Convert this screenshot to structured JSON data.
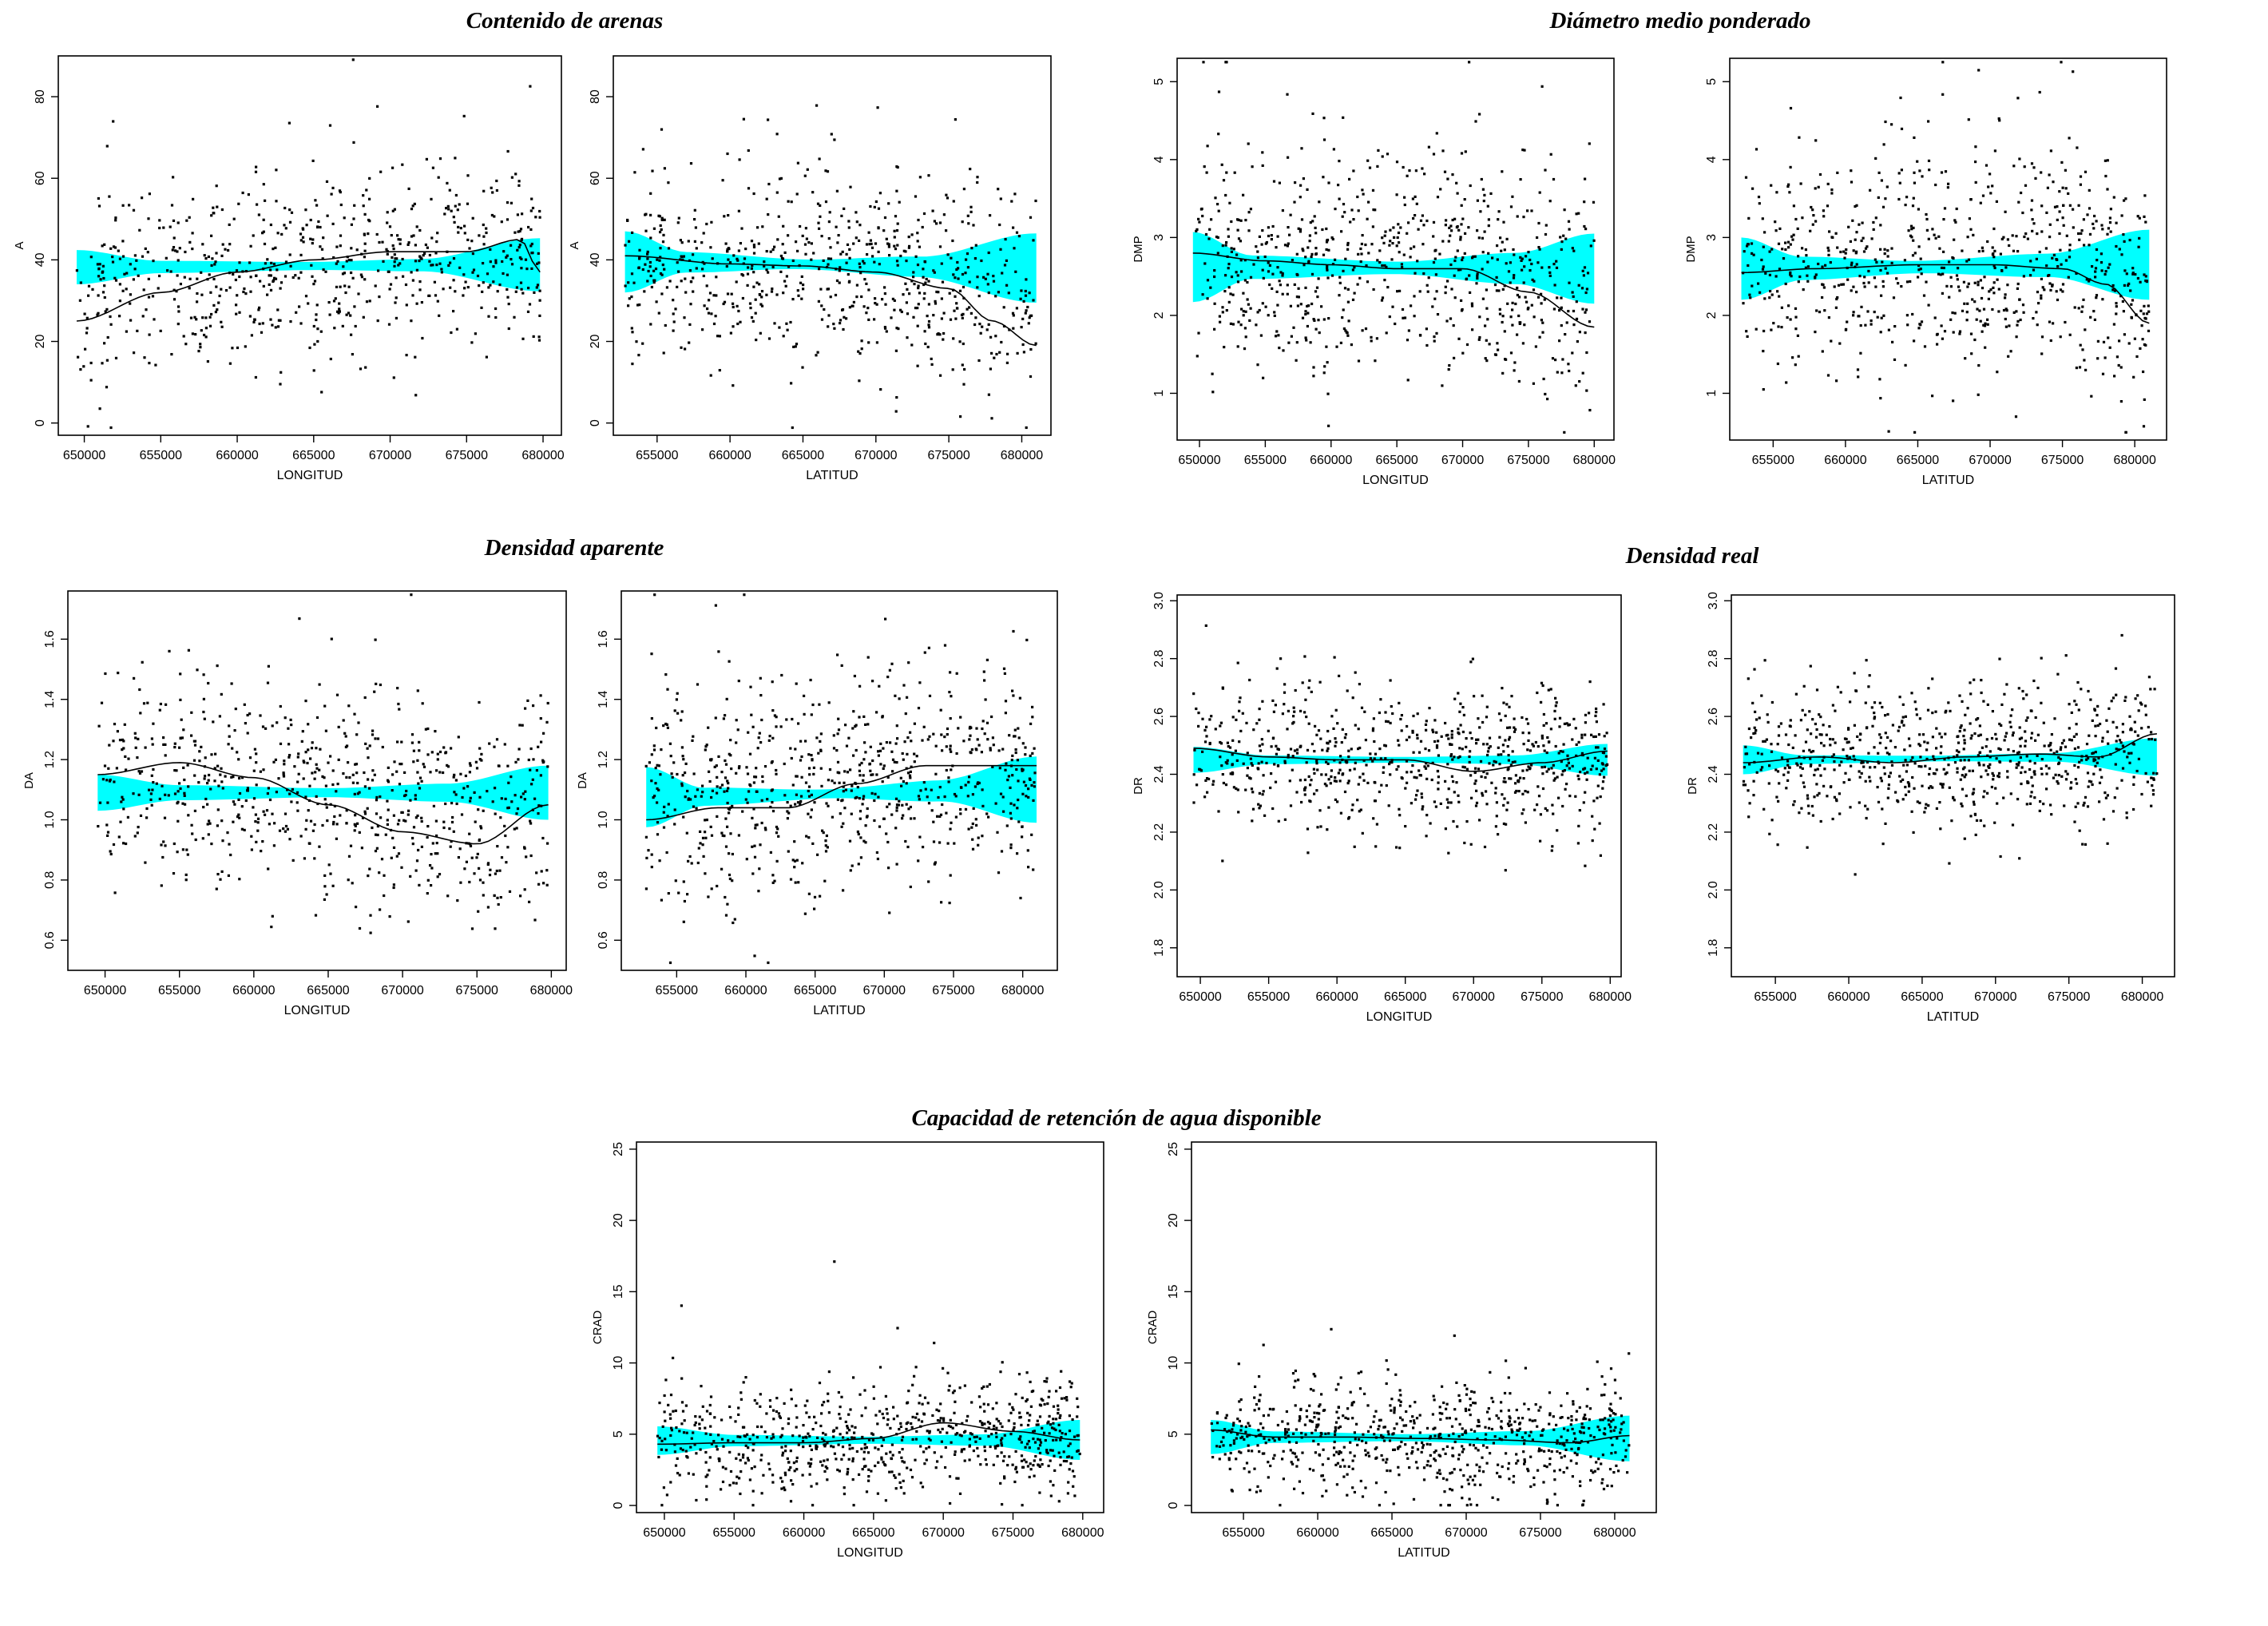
{
  "colors": {
    "band": "#00ffff",
    "points": "#000000",
    "curve": "#000000",
    "frame": "#000000"
  },
  "groups": [
    {
      "title": "Contenido de arenas"
    },
    {
      "title": "Diámetro medio ponderado"
    },
    {
      "title": "Densidad aparente"
    },
    {
      "title": "Densidad real"
    },
    {
      "title": "Capacidad de retención de agua disponible"
    }
  ],
  "chart_data": [
    {
      "type": "scatter",
      "group": 0,
      "xlabel": "LONGITUD",
      "ylabel": "A",
      "xlim": [
        648300,
        681200
      ],
      "ylim": [
        -3,
        90
      ],
      "xticks": [
        650000,
        655000,
        660000,
        665000,
        670000,
        675000,
        680000
      ],
      "yticks": [
        0,
        20,
        40,
        60,
        80
      ],
      "x_range": [
        649500,
        679800
      ],
      "center": 38.5,
      "cloud_sd": 13.5,
      "n_points": 700,
      "seed": 11,
      "smooth": [
        [
          649500,
          25
        ],
        [
          655000,
          32
        ],
        [
          660000,
          37
        ],
        [
          665000,
          40
        ],
        [
          670000,
          42
        ],
        [
          675000,
          42
        ],
        [
          678500,
          45
        ],
        [
          679800,
          37
        ]
      ],
      "band_mean": [
        [
          649500,
          38.2
        ],
        [
          679800,
          38.8
        ]
      ],
      "band_half": [
        [
          649500,
          4.2
        ],
        [
          655000,
          1.5
        ],
        [
          665000,
          1
        ],
        [
          672000,
          1.5
        ],
        [
          679800,
          6.5
        ]
      ]
    },
    {
      "type": "scatter",
      "group": 0,
      "xlabel": "LATITUD",
      "ylabel": "A",
      "xlim": [
        652000,
        682000
      ],
      "ylim": [
        -3,
        90
      ],
      "xticks": [
        655000,
        660000,
        665000,
        670000,
        675000,
        680000
      ],
      "yticks": [
        0,
        20,
        40,
        60,
        80
      ],
      "x_range": [
        652800,
        681000
      ],
      "center": 38,
      "cloud_sd": 13.5,
      "n_points": 700,
      "seed": 23,
      "smooth": [
        [
          652800,
          41
        ],
        [
          660000,
          39
        ],
        [
          665000,
          38.5
        ],
        [
          670000,
          37
        ],
        [
          675000,
          33
        ],
        [
          678000,
          25
        ],
        [
          681000,
          19
        ]
      ],
      "band_mean": [
        [
          652800,
          39.5
        ],
        [
          681000,
          38
        ]
      ],
      "band_half": [
        [
          652800,
          7.5
        ],
        [
          657000,
          2.5
        ],
        [
          665000,
          1.2
        ],
        [
          673000,
          2.5
        ],
        [
          681000,
          8.5
        ]
      ]
    },
    {
      "type": "scatter",
      "group": 1,
      "xlabel": "LONGITUD",
      "ylabel": "DMP",
      "xlim": [
        648300,
        681500
      ],
      "ylim": [
        0.4,
        5.3
      ],
      "xticks": [
        650000,
        655000,
        660000,
        665000,
        670000,
        675000,
        680000
      ],
      "yticks": [
        1,
        2,
        3,
        4,
        5
      ],
      "x_range": [
        649500,
        680000
      ],
      "center": 2.6,
      "cloud_sd": 0.85,
      "n_points": 750,
      "seed": 37,
      "smooth": [
        [
          649500,
          2.8
        ],
        [
          655000,
          2.7
        ],
        [
          660000,
          2.65
        ],
        [
          665000,
          2.6
        ],
        [
          670000,
          2.6
        ],
        [
          675000,
          2.3
        ],
        [
          680000,
          1.85
        ]
      ],
      "band_mean": [
        [
          649500,
          2.62
        ],
        [
          680000,
          2.6
        ]
      ],
      "band_half": [
        [
          649500,
          0.45
        ],
        [
          654000,
          0.15
        ],
        [
          665000,
          0.08
        ],
        [
          674000,
          0.2
        ],
        [
          680000,
          0.45
        ]
      ]
    },
    {
      "type": "scatter",
      "group": 1,
      "xlabel": "LATITUD",
      "ylabel": "DMP",
      "xlim": [
        652000,
        682200
      ],
      "ylim": [
        0.4,
        5.3
      ],
      "xticks": [
        655000,
        660000,
        665000,
        670000,
        675000,
        680000
      ],
      "yticks": [
        1,
        2,
        3,
        4,
        5
      ],
      "x_range": [
        652800,
        681000
      ],
      "center": 2.6,
      "cloud_sd": 0.85,
      "n_points": 750,
      "seed": 41,
      "smooth": [
        [
          652800,
          2.55
        ],
        [
          658000,
          2.6
        ],
        [
          665000,
          2.65
        ],
        [
          670000,
          2.65
        ],
        [
          675000,
          2.6
        ],
        [
          678000,
          2.4
        ],
        [
          681000,
          1.9
        ]
      ],
      "band_mean": [
        [
          652800,
          2.6
        ],
        [
          681000,
          2.65
        ]
      ],
      "band_half": [
        [
          652800,
          0.4
        ],
        [
          657000,
          0.15
        ],
        [
          665000,
          0.08
        ],
        [
          674000,
          0.15
        ],
        [
          681000,
          0.45
        ]
      ]
    },
    {
      "type": "scatter",
      "group": 2,
      "xlabel": "LONGITUD",
      "ylabel": "DA",
      "xlim": [
        647500,
        681000
      ],
      "ylim": [
        0.5,
        1.76
      ],
      "xticks": [
        650000,
        655000,
        660000,
        665000,
        670000,
        675000,
        680000
      ],
      "yticks": [
        0.6,
        0.8,
        1.0,
        1.2,
        1.4,
        1.6
      ],
      "x_range": [
        649500,
        679800
      ],
      "center": 1.09,
      "cloud_sd": 0.2,
      "n_points": 750,
      "seed": 53,
      "smooth": [
        [
          649500,
          1.15
        ],
        [
          655000,
          1.19
        ],
        [
          660000,
          1.14
        ],
        [
          665000,
          1.05
        ],
        [
          670000,
          0.96
        ],
        [
          675000,
          0.92
        ],
        [
          679800,
          1.05
        ]
      ],
      "band_mean": [
        [
          649500,
          1.09
        ],
        [
          679800,
          1.09
        ]
      ],
      "band_half": [
        [
          649500,
          0.06
        ],
        [
          655000,
          0.025
        ],
        [
          665000,
          0.015
        ],
        [
          673000,
          0.03
        ],
        [
          679800,
          0.09
        ]
      ]
    },
    {
      "type": "scatter",
      "group": 2,
      "xlabel": "LATITUD",
      "ylabel": "DA",
      "xlim": [
        651000,
        682500
      ],
      "ylim": [
        0.5,
        1.76
      ],
      "xticks": [
        655000,
        660000,
        665000,
        670000,
        675000,
        680000
      ],
      "yticks": [
        0.6,
        0.8,
        1.0,
        1.2,
        1.4,
        1.6
      ],
      "x_range": [
        652800,
        681000
      ],
      "center": 1.09,
      "cloud_sd": 0.2,
      "n_points": 750,
      "seed": 67,
      "smooth": [
        [
          652800,
          1.0
        ],
        [
          658000,
          1.04
        ],
        [
          663000,
          1.04
        ],
        [
          668000,
          1.12
        ],
        [
          673000,
          1.18
        ],
        [
          681000,
          1.18
        ]
      ],
      "band_mean": [
        [
          652800,
          1.075
        ],
        [
          681000,
          1.1
        ]
      ],
      "band_half": [
        [
          652800,
          0.1
        ],
        [
          657000,
          0.03
        ],
        [
          666000,
          0.015
        ],
        [
          674000,
          0.035
        ],
        [
          681000,
          0.11
        ]
      ]
    },
    {
      "type": "scatter",
      "group": 3,
      "xlabel": "LONGITUD",
      "ylabel": "DR",
      "xlim": [
        648300,
        680800
      ],
      "ylim": [
        1.7,
        3.02
      ],
      "xticks": [
        650000,
        655000,
        660000,
        665000,
        670000,
        675000,
        680000
      ],
      "yticks": [
        1.8,
        2.0,
        2.2,
        2.4,
        2.6,
        2.8,
        3.0
      ],
      "x_range": [
        649500,
        679800
      ],
      "center": 2.45,
      "cloud_sd": 0.14,
      "n_points": 750,
      "seed": 71,
      "smooth": [
        [
          649500,
          2.49
        ],
        [
          655000,
          2.46
        ],
        [
          660000,
          2.45
        ],
        [
          665000,
          2.45
        ],
        [
          670000,
          2.41
        ],
        [
          675000,
          2.44
        ],
        [
          679800,
          2.48
        ]
      ],
      "band_mean": [
        [
          649500,
          2.45
        ],
        [
          679800,
          2.45
        ]
      ],
      "band_half": [
        [
          649500,
          0.045
        ],
        [
          655000,
          0.015
        ],
        [
          665000,
          0.01
        ],
        [
          673000,
          0.015
        ],
        [
          679800,
          0.055
        ]
      ]
    },
    {
      "type": "scatter",
      "group": 3,
      "xlabel": "LATITUD",
      "ylabel": "DR",
      "xlim": [
        652000,
        682200
      ],
      "ylim": [
        1.7,
        3.02
      ],
      "xticks": [
        655000,
        660000,
        665000,
        670000,
        675000,
        680000
      ],
      "yticks": [
        1.8,
        2.0,
        2.2,
        2.4,
        2.6,
        2.8,
        3.0
      ],
      "x_range": [
        652800,
        681000
      ],
      "center": 2.45,
      "cloud_sd": 0.14,
      "n_points": 750,
      "seed": 83,
      "smooth": [
        [
          652800,
          2.44
        ],
        [
          658000,
          2.46
        ],
        [
          663000,
          2.44
        ],
        [
          668000,
          2.46
        ],
        [
          673000,
          2.47
        ],
        [
          677000,
          2.46
        ],
        [
          681000,
          2.54
        ]
      ],
      "band_mean": [
        [
          652800,
          2.45
        ],
        [
          681000,
          2.46
        ]
      ],
      "band_half": [
        [
          652800,
          0.05
        ],
        [
          657000,
          0.015
        ],
        [
          666000,
          0.01
        ],
        [
          674000,
          0.015
        ],
        [
          681000,
          0.065
        ]
      ]
    },
    {
      "type": "scatter",
      "group": 4,
      "xlabel": "LONGITUD",
      "ylabel": "CRAD",
      "xlim": [
        648000,
        681500
      ],
      "ylim": [
        -0.5,
        25.5
      ],
      "xticks": [
        650000,
        655000,
        660000,
        665000,
        670000,
        675000,
        680000
      ],
      "yticks": [
        0,
        5,
        10,
        15,
        20,
        25
      ],
      "x_range": [
        649500,
        679800
      ],
      "center": 4.4,
      "cloud_sd": 2.4,
      "n_points": 750,
      "seed": 97,
      "smooth": [
        [
          649500,
          4.3
        ],
        [
          655000,
          4.4
        ],
        [
          660000,
          4.4
        ],
        [
          665000,
          4.7
        ],
        [
          670000,
          5.8
        ],
        [
          675000,
          5.2
        ],
        [
          679800,
          4.6
        ]
      ],
      "band_mean": [
        [
          649500,
          4.55
        ],
        [
          679800,
          4.6
        ]
      ],
      "band_half": [
        [
          649500,
          1.0
        ],
        [
          655000,
          0.4
        ],
        [
          665000,
          0.25
        ],
        [
          673000,
          0.4
        ],
        [
          679800,
          1.4
        ]
      ]
    },
    {
      "type": "scatter",
      "group": 4,
      "xlabel": "LATITUD",
      "ylabel": "CRAD",
      "xlim": [
        651500,
        682800
      ],
      "ylim": [
        -0.5,
        25.5
      ],
      "xticks": [
        655000,
        660000,
        665000,
        670000,
        675000,
        680000
      ],
      "yticks": [
        0,
        5,
        10,
        15,
        20,
        25
      ],
      "x_range": [
        652800,
        681000
      ],
      "center": 4.5,
      "cloud_sd": 2.4,
      "n_points": 750,
      "seed": 103,
      "smooth": [
        [
          652800,
          5.3
        ],
        [
          657000,
          4.8
        ],
        [
          662000,
          4.8
        ],
        [
          667000,
          4.7
        ],
        [
          672000,
          4.6
        ],
        [
          677000,
          4.4
        ],
        [
          681000,
          4.9
        ]
      ],
      "band_mean": [
        [
          652800,
          4.8
        ],
        [
          681000,
          4.7
        ]
      ],
      "band_half": [
        [
          652800,
          1.2
        ],
        [
          657000,
          0.4
        ],
        [
          666000,
          0.25
        ],
        [
          674000,
          0.5
        ],
        [
          681000,
          1.6
        ]
      ]
    }
  ]
}
